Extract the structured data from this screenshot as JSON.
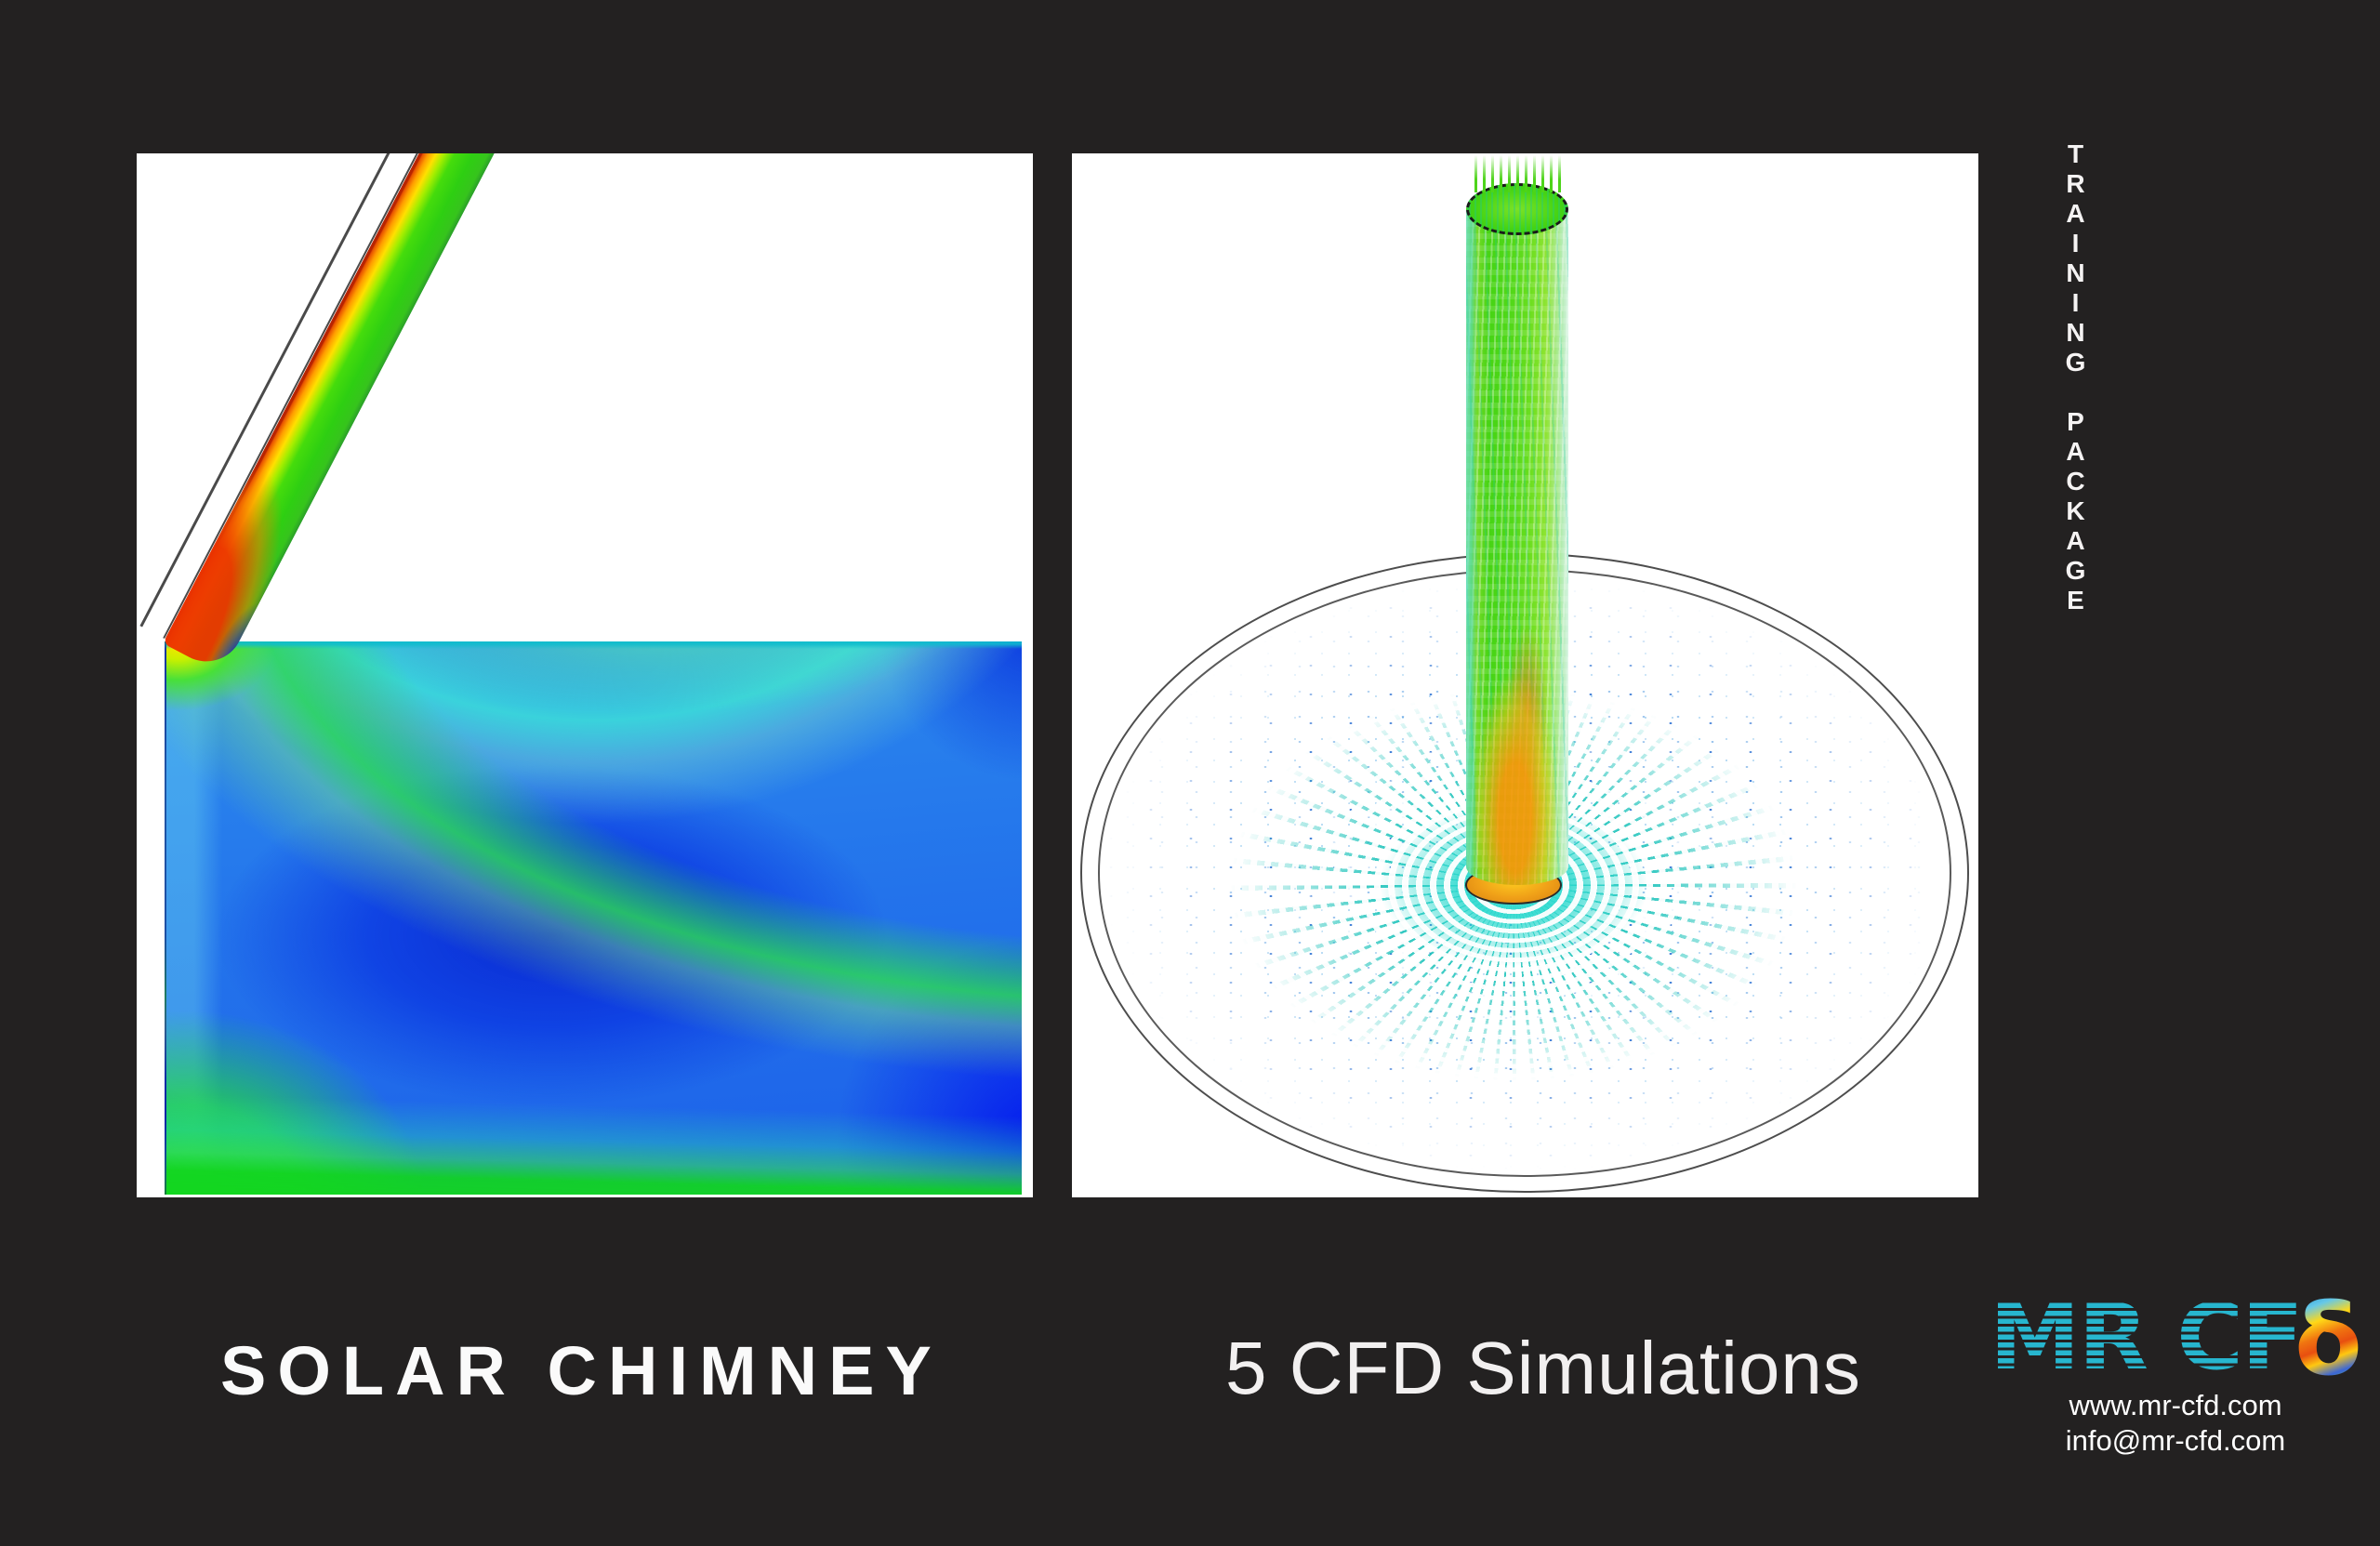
{
  "title": "SOLAR CHIMNEY",
  "subtitle": "5 CFD Simulations",
  "side_label": "TRAINING PACKAGE",
  "logo": {
    "text": "MR CF",
    "delta": "δ",
    "website": "www.mr-cfd.com",
    "email": "info@mr-cfd.com"
  },
  "colors": {
    "background": "#232121",
    "panel": "#ffffff",
    "logo_cyan": "#27b6cf",
    "text": "#f5f3f3"
  }
}
